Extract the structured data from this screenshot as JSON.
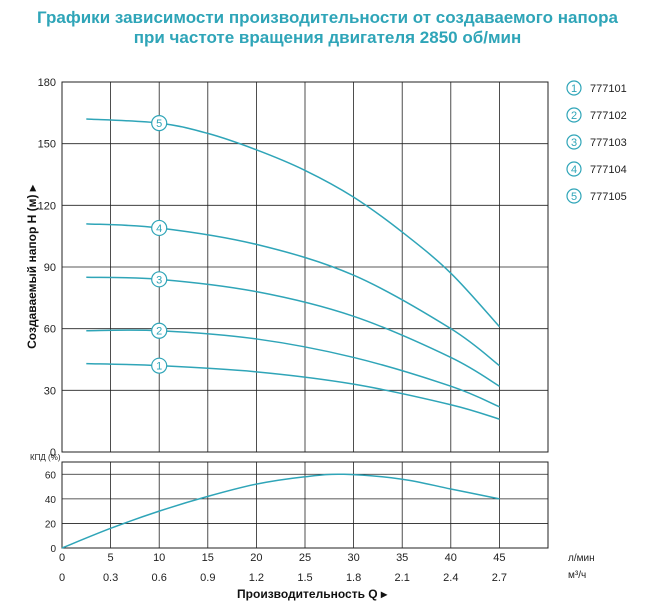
{
  "title_line1": "Графики зависимости производительности от создаваемого напора",
  "title_line2": "при частоте вращения двигателя 2850 об/мин",
  "colors": {
    "title": "#2fa5b8",
    "curve": "#2fa5b8",
    "grid": "#222222"
  },
  "chart_data": [
    {
      "type": "line",
      "ylabel": "Создаваемый напор H (м) ▸",
      "ylim": [
        0,
        180
      ],
      "yticks": [
        0,
        30,
        60,
        90,
        120,
        150,
        180
      ],
      "xlim": [
        0,
        50
      ],
      "legend_position": "right",
      "series": [
        {
          "name": "777101",
          "marker": "1",
          "x": [
            2.5,
            10,
            20,
            30,
            40,
            45
          ],
          "y": [
            43,
            42,
            39,
            33,
            23,
            16
          ]
        },
        {
          "name": "777102",
          "marker": "2",
          "x": [
            2.5,
            10,
            20,
            30,
            40,
            45
          ],
          "y": [
            59,
            59,
            55,
            46,
            32,
            22
          ]
        },
        {
          "name": "777103",
          "marker": "3",
          "x": [
            2.5,
            10,
            20,
            30,
            40,
            45
          ],
          "y": [
            85,
            84,
            78,
            66,
            46,
            32
          ]
        },
        {
          "name": "777104",
          "marker": "4",
          "x": [
            2.5,
            10,
            20,
            30,
            40,
            45
          ],
          "y": [
            111,
            109,
            101,
            86,
            60,
            42
          ]
        },
        {
          "name": "777105",
          "marker": "5",
          "x": [
            2.5,
            10,
            15,
            20,
            25,
            30,
            35,
            40,
            45
          ],
          "y": [
            162,
            160,
            155,
            147,
            137,
            124,
            107,
            87,
            61
          ]
        }
      ]
    },
    {
      "type": "line",
      "ylabel": "КПД (%)",
      "ylim": [
        0,
        70
      ],
      "yticks": [
        0,
        20,
        40,
        60
      ],
      "xlim": [
        0,
        50
      ],
      "xlabel": "Производительность Q ▸",
      "x_ticks_lmin": [
        "0",
        "5",
        "10",
        "15",
        "20",
        "25",
        "30",
        "35",
        "40",
        "45"
      ],
      "x_unit_lmin": "л/мин",
      "x_ticks_m3h": [
        "0",
        "0.3",
        "0.6",
        "0.9",
        "1.2",
        "1.5",
        "1.8",
        "2.1",
        "2.4",
        "2.7"
      ],
      "x_unit_m3h": "м³/ч",
      "series": [
        {
          "x": [
            0,
            5,
            10,
            15,
            20,
            25,
            29,
            35,
            40,
            45
          ],
          "y": [
            0,
            16,
            30,
            42,
            52,
            58,
            60,
            56,
            48,
            40
          ]
        }
      ]
    }
  ]
}
